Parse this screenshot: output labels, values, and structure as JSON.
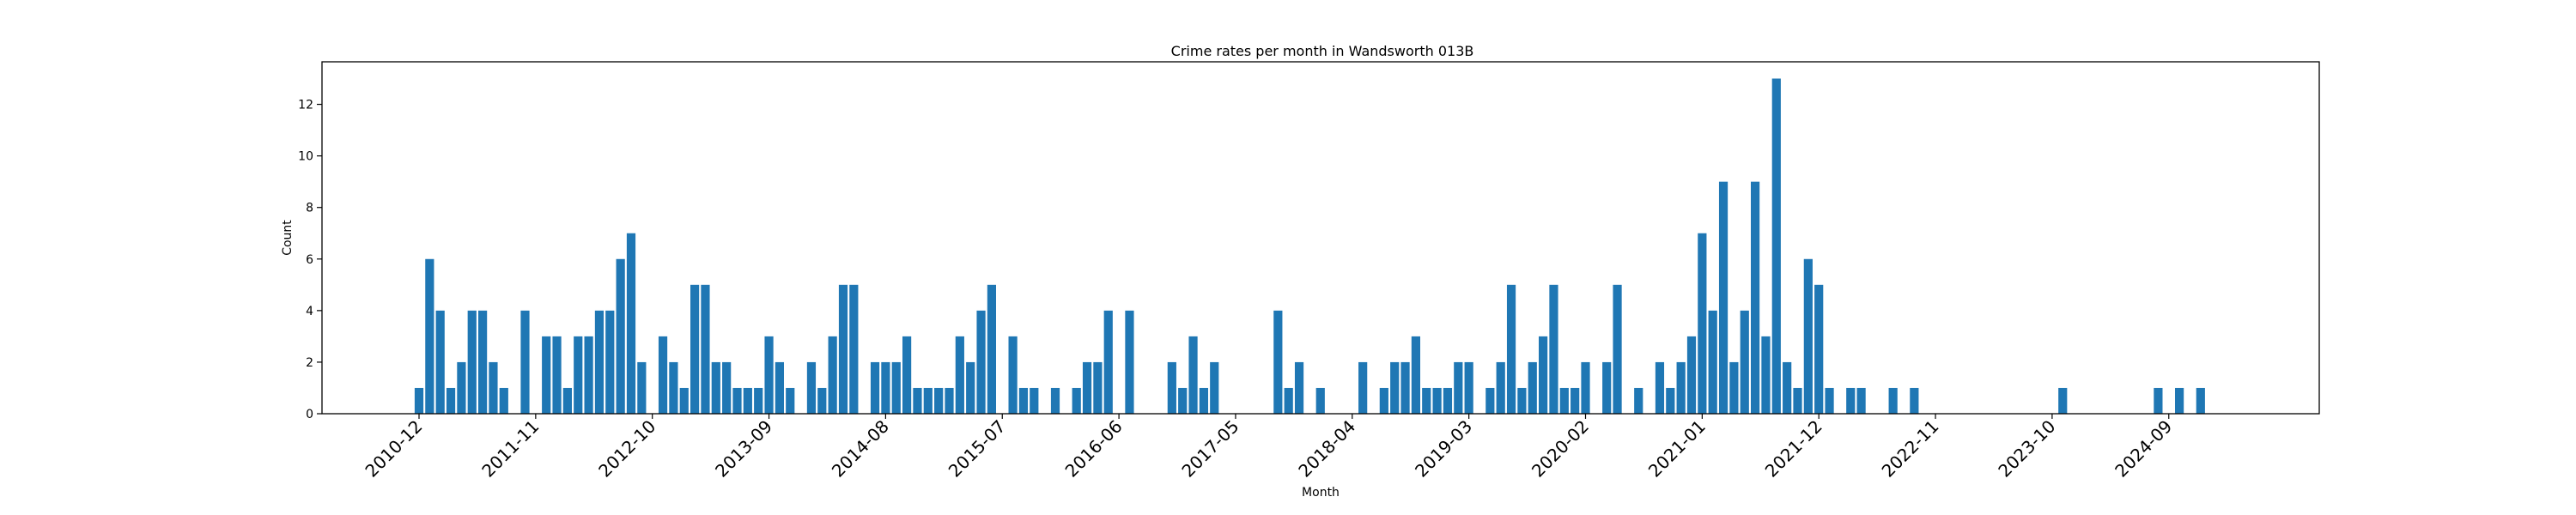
{
  "chart_data": {
    "type": "bar",
    "title": "Crime rates per month in Wandsworth 013B",
    "xlabel": "Month",
    "ylabel": "Count",
    "ylim": [
      0,
      13.65
    ],
    "yticks": [
      0,
      2,
      4,
      6,
      8,
      10,
      12
    ],
    "xticks": [
      "2010-12",
      "2011-11",
      "2012-10",
      "2013-09",
      "2014-08",
      "2015-07",
      "2016-06",
      "2017-05",
      "2018-04",
      "2019-03",
      "2020-02",
      "2021-01",
      "2021-12",
      "2022-11",
      "2023-10",
      "2024-09"
    ],
    "bar_color": "#1f77b4",
    "grid": false,
    "categories": [
      "2010-12",
      "2011-01",
      "2011-02",
      "2011-03",
      "2011-04",
      "2011-05",
      "2011-06",
      "2011-07",
      "2011-08",
      "2011-10",
      "2011-12",
      "2012-01",
      "2012-02",
      "2012-03",
      "2012-04",
      "2012-05",
      "2012-06",
      "2012-07",
      "2012-08",
      "2012-09",
      "2012-11",
      "2012-12",
      "2013-01",
      "2013-02",
      "2013-03",
      "2013-04",
      "2013-05",
      "2013-06",
      "2013-07",
      "2013-08",
      "2013-09",
      "2013-10",
      "2013-11",
      "2014-01",
      "2014-02",
      "2014-03",
      "2014-04",
      "2014-05",
      "2014-07",
      "2014-08",
      "2014-09",
      "2014-10",
      "2014-11",
      "2014-12",
      "2015-01",
      "2015-02",
      "2015-03",
      "2015-04",
      "2015-05",
      "2015-06",
      "2015-08",
      "2015-09",
      "2015-10",
      "2015-12",
      "2016-02",
      "2016-03",
      "2016-04",
      "2016-05",
      "2016-07",
      "2016-11",
      "2016-12",
      "2017-01",
      "2017-02",
      "2017-03",
      "2017-09",
      "2017-10",
      "2017-11",
      "2018-01",
      "2018-05",
      "2018-07",
      "2018-08",
      "2018-09",
      "2018-10",
      "2018-11",
      "2018-12",
      "2019-01",
      "2019-02",
      "2019-03",
      "2019-05",
      "2019-06",
      "2019-07",
      "2019-08",
      "2019-09",
      "2019-10",
      "2019-11",
      "2019-12",
      "2020-01",
      "2020-02",
      "2020-04",
      "2020-05",
      "2020-07",
      "2020-09",
      "2020-10",
      "2020-11",
      "2020-12",
      "2021-01",
      "2021-02",
      "2021-03",
      "2021-04",
      "2021-05",
      "2021-06",
      "2021-07",
      "2021-08",
      "2021-09",
      "2021-10",
      "2021-11",
      "2021-12",
      "2022-01",
      "2022-03",
      "2022-04",
      "2022-07",
      "2022-09",
      "2023-11",
      "2024-08",
      "2024-10",
      "2024-12"
    ],
    "values": [
      1,
      6,
      4,
      1,
      2,
      4,
      4,
      2,
      1,
      4,
      3,
      3,
      1,
      3,
      3,
      4,
      4,
      6,
      7,
      2,
      3,
      2,
      1,
      5,
      5,
      2,
      2,
      1,
      1,
      1,
      3,
      2,
      1,
      2,
      1,
      3,
      5,
      5,
      2,
      2,
      2,
      3,
      1,
      1,
      1,
      1,
      3,
      2,
      4,
      5,
      3,
      1,
      1,
      1,
      1,
      2,
      2,
      4,
      4,
      2,
      1,
      3,
      1,
      2,
      4,
      1,
      2,
      1,
      2,
      1,
      2,
      2,
      3,
      1,
      1,
      1,
      2,
      2,
      1,
      2,
      5,
      1,
      2,
      3,
      5,
      1,
      1,
      2,
      2,
      5,
      1,
      2,
      1,
      2,
      3,
      7,
      4,
      9,
      2,
      4,
      9,
      3,
      13,
      2,
      1,
      6,
      5,
      1,
      1,
      1,
      1,
      1,
      1,
      1,
      1,
      1
    ]
  }
}
